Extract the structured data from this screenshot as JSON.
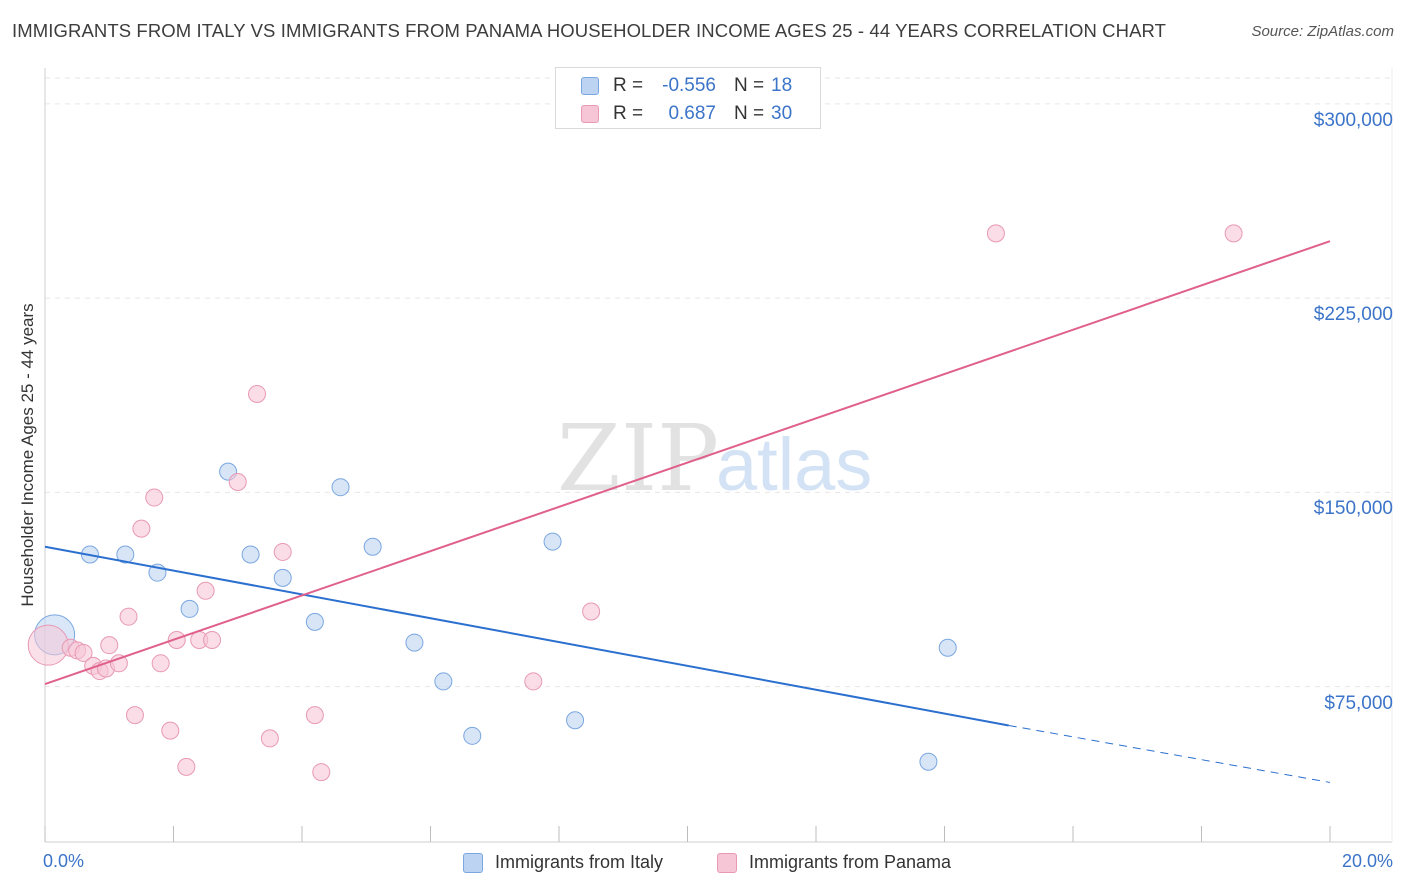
{
  "chart_data": {
    "type": "scatter",
    "title": "IMMIGRANTS FROM ITALY VS IMMIGRANTS FROM PANAMA HOUSEHOLDER INCOME AGES 25 - 44 YEARS CORRELATION CHART",
    "source": "Source: ZipAtlas.com",
    "ylabel": "Householder Income Ages 25 - 44 years",
    "xlabel": "",
    "xlim": [
      0,
      20
    ],
    "ylim": [
      15000,
      310000
    ],
    "x_tick_labels": [
      "0.0%",
      "20.0%"
    ],
    "y_ticks": [
      {
        "value": 75000,
        "label": "$75,000"
      },
      {
        "value": 150000,
        "label": "$150,000"
      },
      {
        "value": 225000,
        "label": "$225,000"
      },
      {
        "value": 300000,
        "label": "$300,000"
      }
    ],
    "grid": true,
    "watermark": {
      "zip": "ZIP",
      "atlas": "atlas"
    },
    "legend_stats": [
      {
        "series": "Immigrants from Italy",
        "r_label": "R =",
        "r_value": "-0.556",
        "n_label": "N =",
        "n_value": "18"
      },
      {
        "series": "Immigrants from Panama",
        "r_label": "R =",
        "r_value": "0.687",
        "n_label": "N =",
        "n_value": "30"
      }
    ],
    "series": [
      {
        "name": "Immigrants from Italy",
        "color": "#7aa7e0",
        "fill": "#bcd4f2",
        "line_color": "#2b6fcf",
        "trend": {
          "x_start": 0,
          "y_start": 129000,
          "x_solid_end": 15,
          "y_solid_end": 60000,
          "x_end": 20,
          "y_end": 38000
        },
        "points": [
          {
            "x": 0.15,
            "y": 95000,
            "big": true
          },
          {
            "x": 0.7,
            "y": 126000
          },
          {
            "x": 1.25,
            "y": 126000
          },
          {
            "x": 1.75,
            "y": 119000
          },
          {
            "x": 2.25,
            "y": 105000
          },
          {
            "x": 2.85,
            "y": 158000
          },
          {
            "x": 3.2,
            "y": 126000
          },
          {
            "x": 3.7,
            "y": 117000
          },
          {
            "x": 4.2,
            "y": 100000
          },
          {
            "x": 4.6,
            "y": 152000
          },
          {
            "x": 5.1,
            "y": 129000
          },
          {
            "x": 5.75,
            "y": 92000
          },
          {
            "x": 6.2,
            "y": 77000
          },
          {
            "x": 6.65,
            "y": 56000
          },
          {
            "x": 7.9,
            "y": 131000
          },
          {
            "x": 8.25,
            "y": 62000
          },
          {
            "x": 13.75,
            "y": 46000
          },
          {
            "x": 14.05,
            "y": 90000
          }
        ]
      },
      {
        "name": "Immigrants from Panama",
        "color": "#e899b4",
        "fill": "#f6c6d6",
        "line_color": "#e0608c",
        "trend": {
          "x_start": 0,
          "y_start": 76000,
          "x_end": 20,
          "y_end": 247000
        },
        "points": [
          {
            "x": 0.05,
            "y": 91000,
            "big": true
          },
          {
            "x": 0.4,
            "y": 90000
          },
          {
            "x": 0.5,
            "y": 89000
          },
          {
            "x": 0.6,
            "y": 88000
          },
          {
            "x": 0.75,
            "y": 83000
          },
          {
            "x": 0.85,
            "y": 81000
          },
          {
            "x": 0.95,
            "y": 82000
          },
          {
            "x": 1.0,
            "y": 91000
          },
          {
            "x": 1.15,
            "y": 84000
          },
          {
            "x": 1.3,
            "y": 102000
          },
          {
            "x": 1.4,
            "y": 64000
          },
          {
            "x": 1.5,
            "y": 136000
          },
          {
            "x": 1.7,
            "y": 148000
          },
          {
            "x": 1.8,
            "y": 84000
          },
          {
            "x": 1.95,
            "y": 58000
          },
          {
            "x": 2.05,
            "y": 93000
          },
          {
            "x": 2.2,
            "y": 44000
          },
          {
            "x": 2.4,
            "y": 93000
          },
          {
            "x": 2.5,
            "y": 112000
          },
          {
            "x": 2.6,
            "y": 93000
          },
          {
            "x": 3.0,
            "y": 154000
          },
          {
            "x": 3.3,
            "y": 188000
          },
          {
            "x": 3.5,
            "y": 55000
          },
          {
            "x": 3.7,
            "y": 127000
          },
          {
            "x": 4.2,
            "y": 64000
          },
          {
            "x": 4.3,
            "y": 42000
          },
          {
            "x": 7.6,
            "y": 77000
          },
          {
            "x": 8.5,
            "y": 104000
          },
          {
            "x": 14.8,
            "y": 250000
          },
          {
            "x": 18.5,
            "y": 250000
          }
        ]
      }
    ]
  }
}
